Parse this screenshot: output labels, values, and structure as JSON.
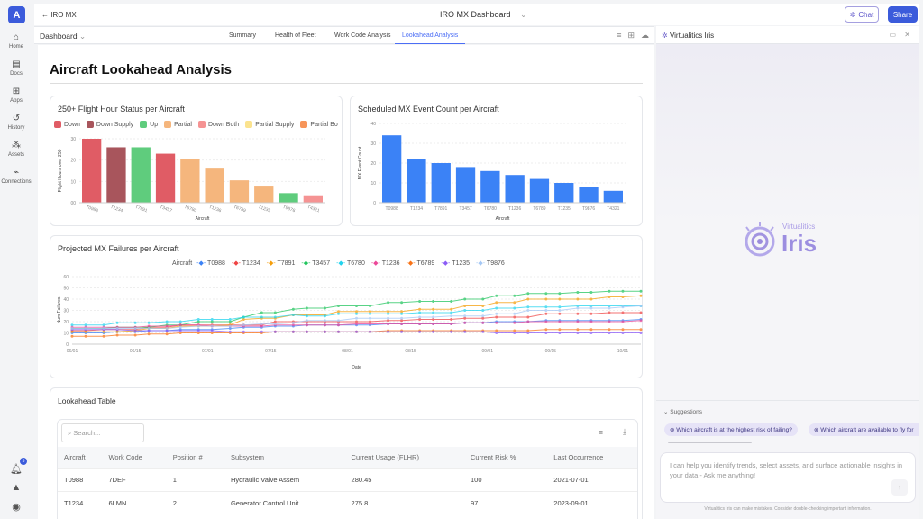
{
  "app": {
    "logo_letter": "A",
    "back_label": "IRO MX",
    "dashboard_title": "IRO MX Dashboard",
    "chat_label": "Chat",
    "share_label": "Share",
    "notification_count": "5"
  },
  "sidebar": {
    "items": [
      {
        "label": "Home",
        "icon": "home-icon"
      },
      {
        "label": "Docs",
        "icon": "doc-icon"
      },
      {
        "label": "Apps",
        "icon": "apps-icon"
      },
      {
        "label": "History",
        "icon": "history-icon"
      },
      {
        "label": "Assets",
        "icon": "assets-icon"
      },
      {
        "label": "Connections",
        "icon": "connections-icon"
      }
    ]
  },
  "tabs": {
    "dashboard_label": "Dashboard",
    "items": [
      "Summary",
      "Health of Fleet",
      "Work Code Analysis",
      "Lookahead Analysis"
    ],
    "active": "Lookahead Analysis"
  },
  "page": {
    "title": "Aircraft Lookahead Analysis"
  },
  "chart_data": [
    {
      "type": "bar",
      "title": "250+ Flight Hour Status per Aircraft",
      "xlabel": "Aircraft",
      "ylabel": "Flight Hours over 250",
      "ylim": [
        0,
        30
      ],
      "yticks": [
        "00",
        "10",
        "20",
        "30"
      ],
      "categories": [
        "T0988",
        "T1234",
        "T7891",
        "T3457",
        "T6780",
        "T1236",
        "T6789",
        "T1235",
        "T9876",
        "T4321"
      ],
      "values": [
        30,
        26,
        26,
        23,
        20.5,
        16,
        10.5,
        8,
        4.5,
        3.5
      ],
      "status": [
        "Down",
        "Down Supply",
        "Up",
        "Down",
        "Partial",
        "Partial",
        "Partial",
        "Partial",
        "Up",
        "Down Both"
      ],
      "legend": [
        {
          "name": "Down",
          "color": "#e05c65"
        },
        {
          "name": "Down Supply",
          "color": "#a8555c"
        },
        {
          "name": "Up",
          "color": "#5fcc7d"
        },
        {
          "name": "Partial",
          "color": "#f5b67d"
        },
        {
          "name": "Down Both",
          "color": "#f59393"
        },
        {
          "name": "Partial Supply",
          "color": "#fbe38f"
        },
        {
          "name": "Partial Bo",
          "color": "#f7955a"
        }
      ]
    },
    {
      "type": "bar",
      "title": "Scheduled MX Event Count per Aircraft",
      "xlabel": "Aircraft",
      "ylabel": "MX Event Count",
      "ylim": [
        0,
        40
      ],
      "yticks": [
        "0",
        "10",
        "20",
        "30",
        "40"
      ],
      "color": "#3b82f6",
      "categories": [
        "T0988",
        "T1234",
        "T7891",
        "T3457",
        "T6780",
        "T1236",
        "T6789",
        "T1235",
        "T9876",
        "T4321"
      ],
      "values": [
        34,
        22,
        20,
        18,
        16,
        14,
        12,
        10,
        8,
        6
      ]
    },
    {
      "type": "line",
      "title": "Projected MX Failures per Aircraft",
      "legend_title": "Aircraft",
      "xlabel": "Date",
      "ylabel": "Num Failures",
      "ylim": [
        0,
        60
      ],
      "yticks": [
        "0",
        "10",
        "20",
        "30",
        "40",
        "50",
        "60"
      ],
      "xticks": [
        "06/01",
        "06/15",
        "07/01",
        "07/15",
        "08/01",
        "08/15",
        "09/01",
        "09/15",
        "10/01"
      ],
      "x": [
        "06/01",
        "06/04",
        "06/08",
        "06/11",
        "06/15",
        "06/18",
        "06/22",
        "06/25",
        "06/29",
        "07/02",
        "07/06",
        "07/09",
        "07/13",
        "07/16",
        "07/20",
        "07/23",
        "07/27",
        "07/30",
        "08/03",
        "08/06",
        "08/10",
        "08/13",
        "08/17",
        "08/20",
        "08/24",
        "08/27",
        "08/31",
        "09/03",
        "09/07",
        "09/10",
        "09/14",
        "09/17",
        "09/21",
        "09/24",
        "09/28",
        "10/01",
        "10/05"
      ],
      "series": [
        {
          "name": "T0988",
          "color": "#3b82f6",
          "values": [
            10,
            10,
            10,
            11,
            11,
            12,
            12,
            13,
            13,
            13,
            14,
            15,
            15,
            16,
            16,
            17,
            17,
            17,
            17,
            17,
            18,
            18,
            18,
            18,
            18,
            19,
            19,
            20,
            20,
            20,
            21,
            21,
            21,
            21,
            21,
            21,
            22
          ]
        },
        {
          "name": "T1234",
          "color": "#ef4444",
          "values": [
            12,
            12,
            13,
            13,
            13,
            15,
            15,
            17,
            17,
            17,
            17,
            17,
            17,
            20,
            20,
            20,
            20,
            20,
            20,
            20,
            21,
            21,
            22,
            22,
            22,
            23,
            23,
            24,
            24,
            24,
            27,
            27,
            27,
            27,
            28,
            28,
            28
          ]
        },
        {
          "name": "T7891",
          "color": "#f59e0b",
          "values": [
            11,
            11,
            11,
            11,
            12,
            14,
            14,
            16,
            16,
            16,
            17,
            22,
            23,
            23,
            26,
            26,
            26,
            29,
            29,
            29,
            29,
            29,
            31,
            31,
            31,
            34,
            34,
            37,
            37,
            40,
            40,
            40,
            40,
            40,
            42,
            42,
            43
          ]
        },
        {
          "name": "T3457",
          "color": "#22c55e",
          "values": [
            14,
            14,
            14,
            15,
            15,
            15,
            17,
            17,
            20,
            20,
            20,
            24,
            28,
            28,
            31,
            32,
            32,
            34,
            34,
            34,
            37,
            37,
            38,
            38,
            38,
            40,
            40,
            43,
            43,
            45,
            45,
            45,
            46,
            46,
            47,
            47,
            47
          ]
        },
        {
          "name": "T6780",
          "color": "#22d3ee",
          "values": [
            17,
            17,
            17,
            19,
            19,
            19,
            20,
            20,
            22,
            22,
            22,
            24,
            24,
            24,
            26,
            25,
            25,
            27,
            27,
            27,
            27,
            27,
            28,
            28,
            28,
            30,
            30,
            32,
            32,
            33,
            33,
            33,
            34,
            34,
            34,
            34,
            34
          ]
        },
        {
          "name": "T1236",
          "color": "#ec4899",
          "values": [
            15,
            15,
            15,
            15,
            15,
            16,
            16,
            17,
            17,
            16,
            16,
            16,
            16,
            17,
            17,
            17,
            17,
            17,
            18,
            18,
            18,
            18,
            18,
            18,
            18,
            19,
            19,
            19,
            19,
            20,
            20,
            20,
            20,
            20,
            20,
            20,
            21
          ]
        },
        {
          "name": "T6789",
          "color": "#f97316",
          "values": [
            7,
            7,
            7,
            8,
            8,
            9,
            9,
            10,
            10,
            10,
            10,
            10,
            10,
            11,
            11,
            11,
            11,
            11,
            11,
            11,
            12,
            12,
            12,
            12,
            12,
            12,
            12,
            12,
            12,
            12,
            13,
            13,
            13,
            13,
            13,
            13,
            13
          ]
        },
        {
          "name": "T1235",
          "color": "#8b5cf6",
          "values": [
            13,
            13,
            13,
            13,
            12,
            12,
            12,
            12,
            12,
            12,
            11,
            11,
            11,
            11,
            11,
            11,
            11,
            11,
            11,
            11,
            11,
            11,
            11,
            11,
            11,
            11,
            11,
            10,
            10,
            10,
            10,
            10,
            10,
            10,
            10,
            10,
            10
          ]
        },
        {
          "name": "T9876",
          "color": "#a5c8f5",
          "values": [
            14,
            14,
            14,
            14,
            14,
            14,
            14,
            15,
            16,
            16,
            16,
            17,
            18,
            18,
            19,
            21,
            21,
            21,
            23,
            23,
            23,
            23,
            24,
            24,
            25,
            25,
            25,
            27,
            27,
            30,
            30,
            30,
            32,
            32,
            32,
            33,
            34
          ]
        }
      ]
    }
  ],
  "table": {
    "title": "Lookahead Table",
    "search_placeholder": "Search...",
    "columns": [
      "Aircraft",
      "Work Code",
      "Position #",
      "Subsystem",
      "Current Usage (FLHR)",
      "Current Risk %",
      "Last Occurrence"
    ],
    "rows": [
      [
        "T0988",
        "7DEF",
        "1",
        "Hydraulic Valve Assem",
        "280.45",
        "100",
        "2021-07-01"
      ],
      [
        "T1234",
        "6LMN",
        "2",
        "Generator Control Unit",
        "275.8",
        "97",
        "2023-09-01"
      ]
    ]
  },
  "iris": {
    "title": "Virtualitics Iris",
    "logo_small": "Virtualitics",
    "logo_big": "Iris",
    "suggestions_label": "Suggestions",
    "suggestions": [
      "Which aircraft is at the highest risk of failing?",
      "Which aircraft are available to fly for"
    ],
    "input_placeholder": "I can help you identify trends, select assets, and surface actionable insights in your data - Ask me anything!",
    "disclaimer": "Virtualitics Iris can make mistakes. Consider double-checking important information."
  }
}
